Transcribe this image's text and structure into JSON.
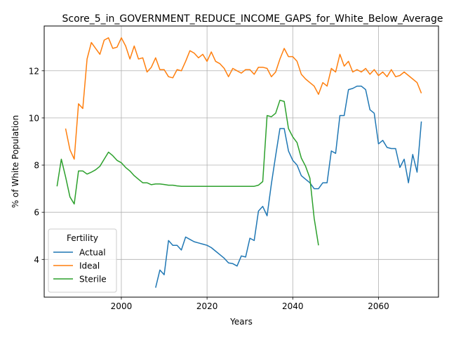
{
  "chart_data": {
    "type": "line",
    "title": "Score_5_in_GOVERNMENT_REDUCE_INCOME_GAPS_for_White_Below_Average",
    "xlabel": "Years",
    "ylabel": "% of White Population",
    "xlim": [
      1982,
      2074
    ],
    "ylim": [
      2.4,
      13.9
    ],
    "xticks": [
      2000,
      2020,
      2040,
      2060
    ],
    "yticks": [
      4,
      6,
      8,
      10,
      12
    ],
    "grid": true,
    "legend": {
      "title": "Fertility",
      "placement": "lower-left"
    },
    "series": [
      {
        "name": "Actual",
        "color": "#1f77b4",
        "x": [
          2008,
          2009,
          2010,
          2011,
          2012,
          2013,
          2014,
          2015,
          2016,
          2017,
          2018,
          2019,
          2020,
          2021,
          2022,
          2023,
          2024,
          2025,
          2026,
          2027,
          2028,
          2029,
          2030,
          2031,
          2032,
          2033,
          2034,
          2035,
          2036,
          2037,
          2038,
          2039,
          2040,
          2041,
          2042,
          2043,
          2044,
          2045,
          2046,
          2047,
          2048,
          2049,
          2050,
          2051,
          2052,
          2053,
          2054,
          2055,
          2056,
          2057,
          2058,
          2059,
          2060,
          2061,
          2062,
          2063,
          2064,
          2065,
          2066,
          2067,
          2068,
          2069,
          2070
        ],
        "y": [
          2.8,
          3.55,
          3.35,
          4.8,
          4.6,
          4.6,
          4.4,
          4.95,
          4.85,
          4.75,
          4.7,
          4.65,
          4.6,
          4.5,
          4.35,
          4.2,
          4.05,
          3.85,
          3.82,
          3.72,
          4.15,
          4.1,
          4.9,
          4.8,
          6.05,
          6.25,
          5.85,
          7.2,
          8.4,
          9.55,
          9.55,
          8.6,
          8.2,
          8.0,
          7.55,
          7.4,
          7.25,
          7.0,
          7.0,
          7.25,
          7.25,
          8.6,
          8.5,
          10.1,
          10.1,
          11.2,
          11.25,
          11.35,
          11.35,
          11.2,
          10.35,
          10.2,
          8.9,
          9.05,
          8.75,
          8.7,
          8.7,
          7.9,
          8.25,
          7.25,
          8.45,
          7.7,
          9.85
        ]
      },
      {
        "name": "Ideal",
        "color": "#ff7f0e",
        "x": [
          1987,
          1988,
          1989,
          1990,
          1991,
          1992,
          1993,
          1994,
          1995,
          1996,
          1997,
          1998,
          1999,
          2000,
          2001,
          2002,
          2003,
          2004,
          2005,
          2006,
          2007,
          2008,
          2009,
          2010,
          2011,
          2012,
          2013,
          2014,
          2015,
          2016,
          2017,
          2018,
          2019,
          2020,
          2021,
          2022,
          2023,
          2024,
          2025,
          2026,
          2027,
          2028,
          2029,
          2030,
          2031,
          2032,
          2033,
          2034,
          2035,
          2036,
          2037,
          2038,
          2039,
          2040,
          2041,
          2042,
          2043,
          2044,
          2045,
          2046,
          2047,
          2048,
          2049,
          2050,
          2051,
          2052,
          2053,
          2054,
          2055,
          2056,
          2057,
          2058,
          2059,
          2060,
          2061,
          2062,
          2063,
          2064,
          2065,
          2066,
          2067,
          2068,
          2069,
          2070
        ],
        "y": [
          9.55,
          8.65,
          8.25,
          10.6,
          10.4,
          12.5,
          13.2,
          12.95,
          12.7,
          13.3,
          13.4,
          12.95,
          13.0,
          13.4,
          13.05,
          12.5,
          13.05,
          12.5,
          12.55,
          11.95,
          12.15,
          12.55,
          12.05,
          12.05,
          11.75,
          11.7,
          12.05,
          12.0,
          12.4,
          12.85,
          12.75,
          12.55,
          12.7,
          12.4,
          12.8,
          12.4,
          12.3,
          12.1,
          11.75,
          12.1,
          12.0,
          11.9,
          12.05,
          12.05,
          11.85,
          12.15,
          12.15,
          12.1,
          11.75,
          11.95,
          12.5,
          12.95,
          12.6,
          12.6,
          12.4,
          11.85,
          11.65,
          11.5,
          11.35,
          11.0,
          11.5,
          11.35,
          12.1,
          11.95,
          12.7,
          12.2,
          12.4,
          11.95,
          12.05,
          11.95,
          12.1,
          11.85,
          12.05,
          11.8,
          11.95,
          11.75,
          12.05,
          11.75,
          11.8,
          11.95,
          11.8,
          11.65,
          11.5,
          11.05
        ]
      },
      {
        "name": "Sterile",
        "color": "#2ca02c",
        "x": [
          1985,
          1986,
          1987,
          1988,
          1989,
          1990,
          1991,
          1992,
          1993,
          1994,
          1995,
          1996,
          1997,
          1998,
          1999,
          2000,
          2001,
          2002,
          2003,
          2004,
          2005,
          2006,
          2007,
          2008,
          2009,
          2010,
          2011,
          2012,
          2013,
          2014,
          2015,
          2016,
          2017,
          2018,
          2019,
          2020,
          2021,
          2022,
          2023,
          2024,
          2025,
          2026,
          2027,
          2028,
          2029,
          2030,
          2031,
          2032,
          2033,
          2034,
          2035,
          2036,
          2037,
          2038,
          2039,
          2040,
          2041,
          2042,
          2043,
          2044,
          2045,
          2046
        ],
        "y": [
          7.1,
          8.25,
          7.5,
          6.65,
          6.35,
          7.75,
          7.75,
          7.62,
          7.7,
          7.8,
          7.95,
          8.25,
          8.55,
          8.4,
          8.2,
          8.1,
          7.9,
          7.75,
          7.55,
          7.4,
          7.25,
          7.25,
          7.17,
          7.2,
          7.2,
          7.18,
          7.15,
          7.15,
          7.12,
          7.1,
          7.1,
          7.1,
          7.1,
          7.1,
          7.1,
          7.1,
          7.1,
          7.1,
          7.1,
          7.1,
          7.1,
          7.1,
          7.1,
          7.1,
          7.1,
          7.1,
          7.1,
          7.15,
          7.3,
          10.1,
          10.05,
          10.2,
          10.75,
          10.7,
          9.55,
          9.2,
          8.95,
          8.3,
          7.95,
          7.45,
          5.75,
          4.6
        ]
      }
    ]
  }
}
